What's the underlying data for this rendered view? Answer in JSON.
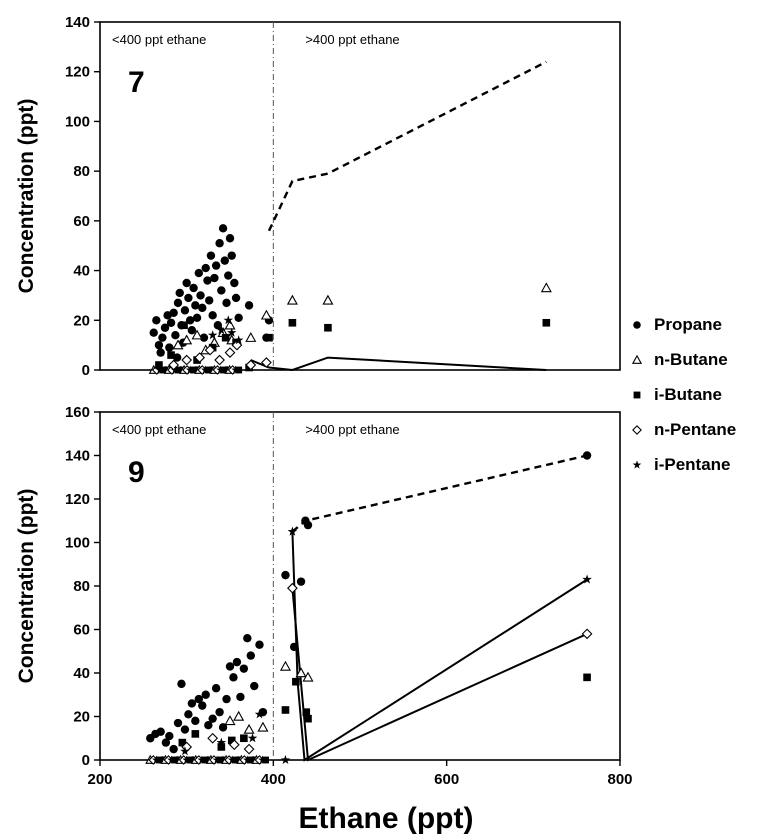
{
  "chart_data": [
    {
      "type": "scatter",
      "panel_label": "7",
      "ylabel": "Concentration (ppt)",
      "xlabel": "",
      "xlim": [
        200,
        800
      ],
      "ylim": [
        0,
        140
      ],
      "yticks": [
        0,
        20,
        40,
        60,
        80,
        100,
        120,
        140
      ],
      "xticks": [],
      "divider_x": 400,
      "region_labels": {
        "left": "<400 ppt ethane",
        "right": ">400 ppt ethane"
      },
      "series": [
        {
          "name": "Propane",
          "marker": "circle",
          "points": [
            [
              262,
              15
            ],
            [
              265,
              20
            ],
            [
              268,
              10
            ],
            [
              270,
              7
            ],
            [
              272,
              13
            ],
            [
              275,
              17
            ],
            [
              278,
              22
            ],
            [
              280,
              9
            ],
            [
              282,
              19
            ],
            [
              285,
              23
            ],
            [
              287,
              14
            ],
            [
              289,
              5
            ],
            [
              290,
              27
            ],
            [
              292,
              31
            ],
            [
              294,
              18
            ],
            [
              296,
              11
            ],
            [
              298,
              24
            ],
            [
              300,
              35
            ],
            [
              302,
              29
            ],
            [
              304,
              20
            ],
            [
              306,
              16
            ],
            [
              308,
              33
            ],
            [
              310,
              26
            ],
            [
              312,
              21
            ],
            [
              314,
              39
            ],
            [
              316,
              30
            ],
            [
              318,
              25
            ],
            [
              320,
              13
            ],
            [
              322,
              41
            ],
            [
              324,
              36
            ],
            [
              326,
              28
            ],
            [
              328,
              46
            ],
            [
              330,
              22
            ],
            [
              332,
              37
            ],
            [
              334,
              42
            ],
            [
              336,
              18
            ],
            [
              338,
              51
            ],
            [
              340,
              32
            ],
            [
              342,
              57
            ],
            [
              344,
              44
            ],
            [
              346,
              27
            ],
            [
              348,
              38
            ],
            [
              350,
              53
            ],
            [
              352,
              46
            ],
            [
              355,
              35
            ],
            [
              357,
              29
            ],
            [
              360,
              21
            ],
            [
              372,
              26
            ],
            [
              392,
              13
            ],
            [
              395,
              20
            ]
          ]
        },
        {
          "name": "n-Butane",
          "marker": "triangle",
          "points": [
            [
              290,
              10
            ],
            [
              300,
              12
            ],
            [
              312,
              14
            ],
            [
              322,
              8
            ],
            [
              332,
              11
            ],
            [
              342,
              15
            ],
            [
              350,
              18
            ],
            [
              352,
              12
            ],
            [
              374,
              13
            ],
            [
              392,
              22
            ],
            [
              422,
              28
            ],
            [
              463,
              28
            ],
            [
              715,
              33
            ]
          ]
        },
        {
          "name": "i-Butane",
          "marker": "square",
          "points": [
            [
              268,
              2
            ],
            [
              282,
              6
            ],
            [
              297,
              18
            ],
            [
              312,
              4
            ],
            [
              330,
              9
            ],
            [
              345,
              13
            ],
            [
              357,
              11
            ],
            [
              372,
              1
            ],
            [
              395,
              13
            ],
            [
              422,
              19
            ],
            [
              463,
              17
            ],
            [
              715,
              19
            ]
          ]
        },
        {
          "name": "n-Pentane",
          "marker": "diamond",
          "points": [
            [
              285,
              2
            ],
            [
              300,
              4
            ],
            [
              315,
              5
            ],
            [
              327,
              8
            ],
            [
              338,
              4
            ],
            [
              350,
              7
            ],
            [
              358,
              10
            ],
            [
              374,
              2
            ],
            [
              392,
              3
            ]
          ]
        },
        {
          "name": "i-Pentane",
          "marker": "star",
          "points": [
            [
              330,
              14
            ],
            [
              340,
              16
            ],
            [
              348,
              20
            ],
            [
              352,
              15
            ],
            [
              360,
              12
            ]
          ]
        }
      ],
      "zero_cluster": {
        "from": 262,
        "to": 360
      },
      "lines": [
        {
          "style": "dashed",
          "points": [
            [
              395,
              56
            ],
            [
              422,
              76
            ],
            [
              463,
              79
            ],
            [
              715,
              124
            ]
          ]
        },
        {
          "style": "solid",
          "points": [
            [
              374,
              4
            ],
            [
              395,
              1
            ],
            [
              422,
              0
            ],
            [
              463,
              5
            ],
            [
              715,
              0
            ]
          ]
        }
      ]
    },
    {
      "type": "scatter",
      "panel_label": "9",
      "ylabel": "Concentration (ppt)",
      "xlabel": "Ethane (ppt)",
      "xlim": [
        200,
        800
      ],
      "ylim": [
        0,
        160
      ],
      "yticks": [
        0,
        20,
        40,
        60,
        80,
        100,
        120,
        140,
        160
      ],
      "xticks": [
        200,
        400,
        600,
        800
      ],
      "divider_x": 400,
      "region_labels": {
        "left": "<400 ppt ethane",
        "right": ">400 ppt ethane"
      },
      "series": [
        {
          "name": "Propane",
          "marker": "circle",
          "points": [
            [
              258,
              10
            ],
            [
              264,
              12
            ],
            [
              270,
              13
            ],
            [
              276,
              8
            ],
            [
              280,
              11
            ],
            [
              285,
              5
            ],
            [
              290,
              17
            ],
            [
              294,
              35
            ],
            [
              298,
              14
            ],
            [
              302,
              21
            ],
            [
              306,
              26
            ],
            [
              310,
              18
            ],
            [
              314,
              28
            ],
            [
              318,
              25
            ],
            [
              322,
              30
            ],
            [
              325,
              16
            ],
            [
              330,
              19
            ],
            [
              334,
              33
            ],
            [
              338,
              22
            ],
            [
              342,
              15
            ],
            [
              346,
              28
            ],
            [
              350,
              43
            ],
            [
              354,
              38
            ],
            [
              358,
              45
            ],
            [
              362,
              29
            ],
            [
              366,
              42
            ],
            [
              370,
              56
            ],
            [
              374,
              48
            ],
            [
              378,
              34
            ],
            [
              384,
              53
            ],
            [
              388,
              22
            ],
            [
              414,
              85
            ],
            [
              424,
              52
            ],
            [
              432,
              82
            ],
            [
              437,
              110
            ],
            [
              440,
              108
            ],
            [
              762,
              140
            ]
          ]
        },
        {
          "name": "n-Butane",
          "marker": "triangle",
          "points": [
            [
              350,
              18
            ],
            [
              360,
              20
            ],
            [
              372,
              14
            ],
            [
              388,
              15
            ],
            [
              414,
              43
            ],
            [
              432,
              40
            ],
            [
              440,
              38
            ]
          ]
        },
        {
          "name": "i-Butane",
          "marker": "square",
          "points": [
            [
              295,
              8
            ],
            [
              310,
              12
            ],
            [
              340,
              6
            ],
            [
              352,
              9
            ],
            [
              366,
              10
            ],
            [
              414,
              23
            ],
            [
              426,
              36
            ],
            [
              438,
              22
            ],
            [
              440,
              19
            ],
            [
              762,
              38
            ]
          ]
        },
        {
          "name": "n-Pentane",
          "marker": "diamond",
          "points": [
            [
              300,
              6
            ],
            [
              330,
              10
            ],
            [
              355,
              7
            ],
            [
              372,
              5
            ],
            [
              422,
              79
            ],
            [
              762,
              58
            ]
          ]
        },
        {
          "name": "i-Pentane",
          "marker": "star",
          "points": [
            [
              298,
              4
            ],
            [
              340,
              8
            ],
            [
              376,
              10
            ],
            [
              384,
              21
            ],
            [
              414,
              0
            ],
            [
              422,
              105
            ],
            [
              762,
              83
            ]
          ]
        }
      ],
      "zero_cluster": {
        "from": 258,
        "to": 392
      },
      "lines": [
        {
          "style": "dashed",
          "points": [
            [
              422,
              105
            ],
            [
              437,
              110
            ],
            [
              762,
              140
            ]
          ]
        },
        {
          "style": "solid",
          "points": [
            [
              422,
              105
            ],
            [
              428,
              36
            ],
            [
              436,
              0
            ],
            [
              762,
              83
            ]
          ]
        },
        {
          "style": "solid",
          "points": [
            [
              422,
              79
            ],
            [
              432,
              35
            ],
            [
              440,
              0
            ],
            [
              762,
              58
            ]
          ]
        }
      ]
    }
  ],
  "legend": [
    {
      "label": "Propane",
      "marker": "circle"
    },
    {
      "label": "n-Butane",
      "marker": "triangle"
    },
    {
      "label": "i-Butane",
      "marker": "square"
    },
    {
      "label": "n-Pentane",
      "marker": "diamond"
    },
    {
      "label": "i-Pentane",
      "marker": "star"
    }
  ]
}
